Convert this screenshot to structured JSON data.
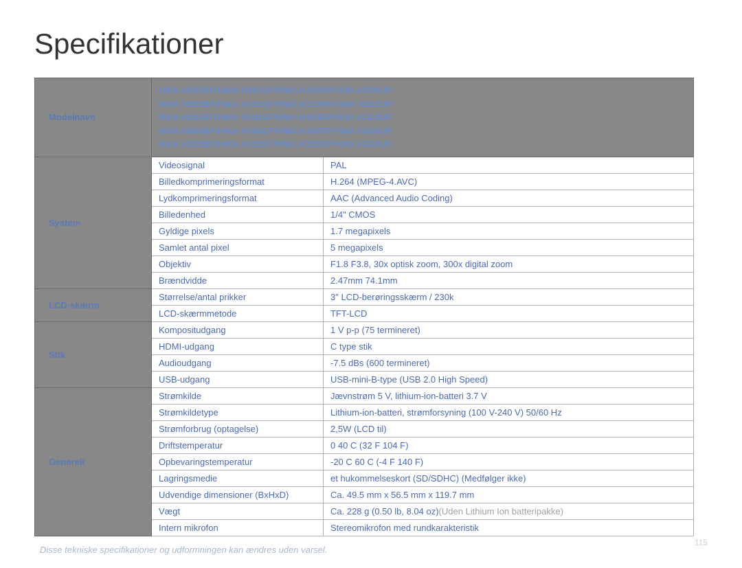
{
  "title": "Specifikationer",
  "header": {
    "section_label": "Modelnavn",
    "models": [
      "HMX-H300BP/HMX-H300SP/HMX-H300RP/HMX-H300UP",
      "HMX-H303BP/HMX-H303SP/HMX-H303RP/HMX-H303UP",
      "HMX-H304BP/HMX-H304SP/HMX-H304RP/HMX-H304UP",
      "HMX-H305BP/HMX-H305SP/HMX-H305RP/HMX-H305UP",
      "HMX-H320BP/HMX-H320SP/HMX-H320RP/HMX-H320UP"
    ]
  },
  "sections": [
    {
      "label": "System",
      "rows": [
        {
          "label": "Videosignal",
          "value": "PAL"
        },
        {
          "label": "Billedkomprimeringsformat",
          "value": "H.264 (MPEG-4.AVC)"
        },
        {
          "label": "Lydkomprimeringsformat",
          "value": "AAC (Advanced Audio Coding)"
        },
        {
          "label": "Billedenhed",
          "value": "1/4\" CMOS"
        },
        {
          "label": "Gyldige pixels",
          "value": "1.7 megapixels"
        },
        {
          "label": "Samlet antal pixel",
          "value": "5 megapixels"
        },
        {
          "label": "Objektiv",
          "value": "F1.8   F3.8, 30x optisk zoom, 300x digital zoom"
        },
        {
          "label": "Brændvidde",
          "value": "2.47mm   74.1mm"
        }
      ]
    },
    {
      "label": "LCD-skærm",
      "rows": [
        {
          "label": "Størrelse/antal prikker",
          "value": "3\" LCD-berøringsskærm / 230k"
        },
        {
          "label": "LCD-skærmmetode",
          "value": "TFT-LCD"
        }
      ]
    },
    {
      "label": "Stik",
      "rows": [
        {
          "label": "Kompositudgang",
          "value": "1 V p-p (75   termineret)"
        },
        {
          "label": "HDMI-udgang",
          "value": "C type stik"
        },
        {
          "label": "Audioudgang",
          "value": "-7.5 dBs (600   termineret)"
        },
        {
          "label": "USB-udgang",
          "value": "USB-mini-B-type (USB 2.0 High Speed)"
        }
      ]
    },
    {
      "label": "Generelt",
      "rows": [
        {
          "label": "Strømkilde",
          "value": "Jævnstrøm 5 V, lithium-ion-batteri 3.7 V"
        },
        {
          "label": "Strømkildetype",
          "value": "Lithium-ion-batteri, strømforsyning (100 V-240 V) 50/60 Hz"
        },
        {
          "label": "Strømforbrug (optagelse)",
          "value": "2,5W (LCD til)"
        },
        {
          "label": "Driftstemperatur",
          "value": "0   40 C (32 F  104 F)"
        },
        {
          "label": "Opbevaringstemperatur",
          "value": "-20 C   60 C (-4 F   140 F)"
        },
        {
          "label": "Lagringsmedie",
          "value": "et hukommelseskort (SD/SDHC) (Medfølger ikke)"
        },
        {
          "label": "Udvendige dimensioner (BxHxD)",
          "value": "Ca. 49.5 mm x 56.5 mm x 119.7 mm"
        },
        {
          "label": "Vægt",
          "value": "Ca. 228 g (0.50 lb, 8.04 oz)",
          "value_gray": "(Uden Lithium Ion batteripakke)"
        },
        {
          "label": "Intern mikrofon",
          "value": "Stereomikrofon med rundkarakteristik"
        }
      ]
    }
  ],
  "footer_note": "Disse tekniske specifikationer og udformningen kan ændres uden varsel.",
  "page_num": "115",
  "colors": {
    "title": "#333333",
    "section_bg": "#888888",
    "section_text": "#5a7ab8",
    "cell_text": "#4a6ab8",
    "gray_text": "#a0a0a0",
    "border": "#b0b0b0",
    "footer": "#a8b8d0"
  }
}
